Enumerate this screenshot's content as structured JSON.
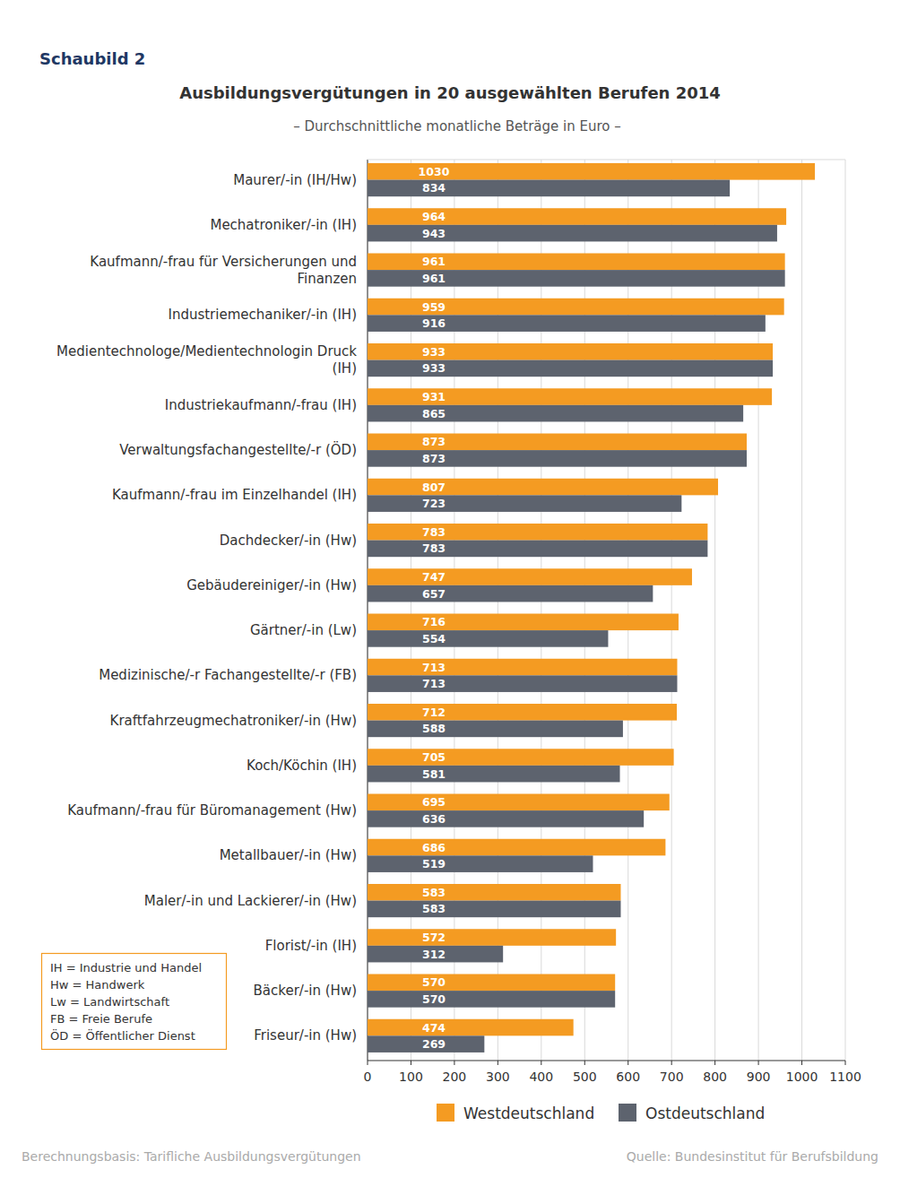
{
  "header": {
    "label": "Schaubild 2"
  },
  "chart_data": {
    "type": "bar",
    "orientation": "horizontal",
    "title": "Ausbildungsvergütungen in 20 ausgewählten Berufen 2014",
    "subtitle": "– Durchschnittliche monatliche Beträge in Euro –",
    "categories": [
      "Maurer/-in (IH/Hw)",
      "Mechatroniker/-in (IH)",
      "Kaufmann/-frau für Versicherungen und Finanzen",
      "Industriemechaniker/-in (IH)",
      "Medientechnologe/Medientechnologin Druck (IH)",
      "Industriekaufmann/-frau (IH)",
      "Verwaltungsfachangestellte/-r (ÖD)",
      "Kaufmann/-frau im Einzelhandel (IH)",
      "Dachdecker/-in (Hw)",
      "Gebäudereiniger/-in (Hw)",
      "Gärtner/-in (Lw)",
      "Medizinische/-r Fachangestellte/-r (FB)",
      "Kraftfahrzeugmechatroniker/-in (Hw)",
      "Koch/Köchin (IH)",
      "Kaufmann/-frau für Büromanagement (Hw)",
      "Metallbauer/-in (Hw)",
      "Maler/-in und Lackierer/-in (Hw)",
      "Florist/-in (IH)",
      "Bäcker/-in (Hw)",
      "Friseur/-in (Hw)"
    ],
    "series": [
      {
        "name": "Westdeutschland",
        "color": "#f49b22",
        "values": [
          1030,
          964,
          961,
          959,
          933,
          931,
          873,
          807,
          783,
          747,
          716,
          713,
          712,
          705,
          695,
          686,
          583,
          572,
          570,
          474
        ]
      },
      {
        "name": "Ostdeutschland",
        "color": "#5d636e",
        "values": [
          834,
          943,
          961,
          916,
          933,
          865,
          873,
          723,
          783,
          657,
          554,
          713,
          588,
          581,
          636,
          519,
          583,
          312,
          570,
          269
        ]
      }
    ],
    "xlim": [
      0,
      1100
    ],
    "xticks": [
      0,
      100,
      200,
      300,
      400,
      500,
      600,
      700,
      800,
      900,
      1000,
      1100
    ],
    "grid": true,
    "data_labels": true,
    "legend": "bottom"
  },
  "key": [
    "IH = Industrie und Handel",
    "Hw = Handwerk",
    "Lw = Landwirtschaft",
    "FB = Freie Berufe",
    "ÖD = Öffentlicher Dienst"
  ],
  "footer": {
    "basis": "Berechnungsbasis: Tarifliche Ausbildungsvergütungen",
    "source": "Quelle: Bundesinstitut für Berufsbildung"
  }
}
